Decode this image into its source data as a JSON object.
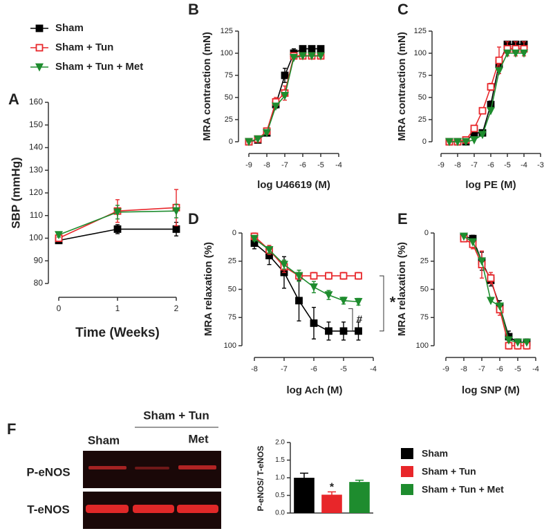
{
  "chart_data": [
    {
      "type": "line",
      "panel": "A",
      "xlabel": "Time (Weeks)",
      "ylabel": "SBP (mmHg)",
      "x": [
        0,
        1,
        2
      ],
      "xlim": [
        0,
        2
      ],
      "xticks": [
        0,
        1,
        2
      ],
      "ylim": [
        80,
        160
      ],
      "yticks": [
        80,
        90,
        100,
        110,
        120,
        130,
        140,
        150,
        160
      ],
      "series": [
        {
          "name": "Sham",
          "color": "#000000",
          "marker": "square",
          "values": [
            99,
            104,
            104
          ],
          "errors": [
            1,
            2,
            3
          ]
        },
        {
          "name": "Sham + Tun",
          "color": "#e8262a",
          "marker": "square-open",
          "values": [
            100,
            112,
            113.5
          ],
          "errors": [
            1,
            5,
            8
          ]
        },
        {
          "name": "Sham + Tun + Met",
          "color": "#1e8c2e",
          "marker": "triangle-down",
          "values": [
            101.5,
            111.5,
            112
          ],
          "errors": [
            1,
            3,
            3
          ]
        }
      ]
    },
    {
      "type": "line",
      "panel": "B",
      "xlabel": "log U46619 (M)",
      "ylabel": "MRA contraction (mN)",
      "x": [
        -9,
        -8.5,
        -8,
        -7.5,
        -7,
        -6.5,
        -6,
        -5.5,
        -5
      ],
      "xlim": [
        -9,
        -4
      ],
      "xticks": [
        -9,
        -8,
        -7,
        -6,
        -5,
        -4
      ],
      "ylim": [
        0,
        125
      ],
      "yticks": [
        0,
        25,
        50,
        75,
        100,
        125
      ],
      "series": [
        {
          "color": "#000000",
          "marker": "square",
          "values": [
            0,
            2,
            10,
            42,
            75,
            100,
            105,
            105,
            105
          ],
          "errors": [
            1,
            1,
            2,
            4,
            8,
            5,
            2,
            2,
            2
          ]
        },
        {
          "color": "#e8262a",
          "marker": "square-open",
          "values": [
            0,
            3,
            12,
            45,
            55,
            97,
            97,
            97,
            97
          ],
          "errors": [
            1,
            1,
            2,
            5,
            8,
            3,
            2,
            2,
            2
          ]
        },
        {
          "color": "#1e8c2e",
          "marker": "triangle-down",
          "values": [
            0,
            3,
            10,
            40,
            52,
            95,
            97,
            97,
            97
          ]
        }
      ]
    },
    {
      "type": "line",
      "panel": "C",
      "xlabel": "log PE (M)",
      "ylabel": "MRA contraction (mN)",
      "x": [
        -8.5,
        -8,
        -7.5,
        -7,
        -6.5,
        -6,
        -5.5,
        -5,
        -4.5,
        -4
      ],
      "xlim": [
        -9,
        -3
      ],
      "xticks": [
        -9,
        -8,
        -7,
        -6,
        -5,
        -4,
        -3
      ],
      "ylim": [
        0,
        125
      ],
      "yticks": [
        0,
        25,
        50,
        75,
        100,
        125
      ],
      "series": [
        {
          "color": "#000000",
          "marker": "square",
          "values": [
            0,
            0,
            0,
            10,
            10,
            42,
            88,
            110,
            110,
            110
          ],
          "errors": [
            1,
            1,
            1,
            2,
            2,
            4,
            6,
            3,
            3,
            3
          ]
        },
        {
          "color": "#e8262a",
          "marker": "square-open",
          "values": [
            0,
            0,
            2,
            15,
            35,
            62,
            92,
            105,
            105,
            105
          ],
          "errors": [
            1,
            1,
            1,
            3,
            3,
            4,
            15,
            8,
            8,
            8
          ]
        },
        {
          "color": "#1e8c2e",
          "marker": "triangle-down",
          "values": [
            0,
            0,
            0,
            2,
            8,
            35,
            80,
            100,
            100,
            100
          ]
        }
      ]
    },
    {
      "type": "line",
      "panel": "D",
      "xlabel": "log Ach (M)",
      "ylabel": "MRA relaxation (%)",
      "y_inverted": true,
      "x": [
        -8,
        -7.5,
        -7,
        -6.5,
        -6,
        -5.5,
        -5,
        -4.5
      ],
      "xlim": [
        -8,
        -4
      ],
      "xticks": [
        -8,
        -7,
        -6,
        -5,
        -4
      ],
      "ylim": [
        0,
        100
      ],
      "yticks": [
        0,
        25,
        50,
        75,
        100
      ],
      "annotations": [
        "*",
        "#"
      ],
      "series": [
        {
          "color": "#000000",
          "marker": "square",
          "values": [
            9,
            20,
            35,
            60,
            80,
            87,
            87,
            87
          ],
          "errors": [
            5,
            8,
            14,
            18,
            14,
            8,
            8,
            8
          ]
        },
        {
          "color": "#e8262a",
          "marker": "square-open",
          "values": [
            3,
            15,
            30,
            38,
            38,
            38,
            38,
            38
          ],
          "errors": [
            3,
            4,
            5,
            3,
            3,
            3,
            3,
            3
          ]
        },
        {
          "color": "#1e8c2e",
          "marker": "triangle-down",
          "values": [
            5,
            15,
            28,
            38,
            48,
            55,
            60,
            61
          ],
          "errors": [
            2,
            3,
            4,
            5,
            5,
            4,
            3,
            3
          ]
        }
      ]
    },
    {
      "type": "line",
      "panel": "E",
      "xlabel": "log SNP (M)",
      "ylabel": "MRA relaxation (%)",
      "y_inverted": true,
      "x": [
        -8,
        -7.5,
        -7,
        -6.5,
        -6,
        -5.5,
        -5,
        -4.5
      ],
      "xlim": [
        -9,
        -4
      ],
      "xticks": [
        -9,
        -8,
        -7,
        -6,
        -5,
        -4
      ],
      "ylim": [
        0,
        100
      ],
      "yticks": [
        0,
        25,
        50,
        75,
        100
      ],
      "series": [
        {
          "color": "#000000",
          "marker": "square",
          "values": [
            3,
            5,
            25,
            42,
            65,
            92,
            97,
            97
          ],
          "errors": [
            2,
            3,
            8,
            5,
            5,
            5,
            3,
            3
          ]
        },
        {
          "color": "#e8262a",
          "marker": "square-open",
          "values": [
            5,
            10,
            28,
            40,
            68,
            100,
            100,
            100
          ],
          "errors": [
            2,
            4,
            12,
            5,
            5,
            3,
            3,
            3
          ]
        },
        {
          "color": "#1e8c2e",
          "marker": "triangle-down",
          "values": [
            3,
            8,
            25,
            60,
            65,
            95,
            97,
            97
          ]
        }
      ]
    },
    {
      "type": "bar",
      "panel": "F",
      "ylabel": "P-eNOS/ T-eNOS",
      "categories": [
        "Sham",
        "Sham + Tun",
        "Sham + Tun + Met"
      ],
      "colors": [
        "#000000",
        "#e8262a",
        "#1e8c2e"
      ],
      "values": [
        1.0,
        0.52,
        0.88
      ],
      "errors": [
        0.13,
        0.08,
        0.05
      ],
      "annotations": [
        "*"
      ],
      "ylim": [
        0,
        2
      ],
      "yticks": [
        {
          "value": 0,
          "label": "0.0"
        },
        {
          "value": 0.5,
          "label": "0.5"
        },
        {
          "value": 1,
          "label": "1.0"
        },
        {
          "value": 1.5,
          "label": "1.5"
        },
        {
          "value": 2,
          "label": "2.0"
        }
      ]
    }
  ],
  "blot": {
    "header": "Sham + Tun",
    "lane_labels": [
      "Sham",
      "Met"
    ],
    "row_labels": [
      "P-eNOS",
      "T-eNOS"
    ]
  }
}
